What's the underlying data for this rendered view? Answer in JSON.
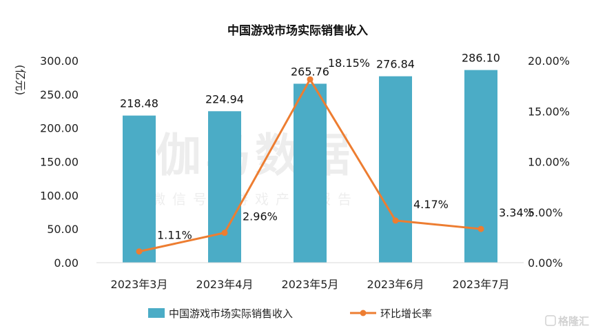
{
  "chart_data": {
    "type": "bar",
    "title": "中国游戏市场实际销售收入",
    "ylabel": "(亿元)",
    "categories": [
      "2023年3月",
      "2023年4月",
      "2023年5月",
      "2023年6月",
      "2023年7月"
    ],
    "series": [
      {
        "name": "中国游戏市场实际销售收入",
        "type": "bar",
        "axis": "left",
        "values": [
          218.48,
          224.94,
          265.76,
          276.84,
          286.1
        ],
        "labels": [
          "218.48",
          "224.94",
          "265.76",
          "276.84",
          "286.10"
        ],
        "color": "#4bacc6"
      },
      {
        "name": "环比增长率",
        "type": "line",
        "axis": "right",
        "values": [
          1.11,
          2.96,
          18.15,
          4.17,
          3.34
        ],
        "labels": [
          "1.11%",
          "2.96%",
          "18.15%",
          "4.17%",
          "3.34%"
        ],
        "color": "#ed7d31"
      }
    ],
    "y_left": {
      "min": 0,
      "max": 300,
      "ticks": [
        0,
        50,
        100,
        150,
        200,
        250,
        300
      ],
      "tick_labels": [
        "0.00",
        "50.00",
        "100.00",
        "150.00",
        "200.00",
        "250.00",
        "300.00"
      ]
    },
    "y_right": {
      "min": 0,
      "max": 20,
      "ticks": [
        0,
        5,
        10,
        15,
        20
      ],
      "tick_labels": [
        "0.00%",
        "5.00%",
        "10.00%",
        "15.00%",
        "20.00%"
      ]
    },
    "grid": false,
    "legend_position": "bottom"
  },
  "watermark": {
    "line1": "伽马数据",
    "line2": "微信号：游戏产业报告"
  },
  "corner_logo": "格隆汇"
}
